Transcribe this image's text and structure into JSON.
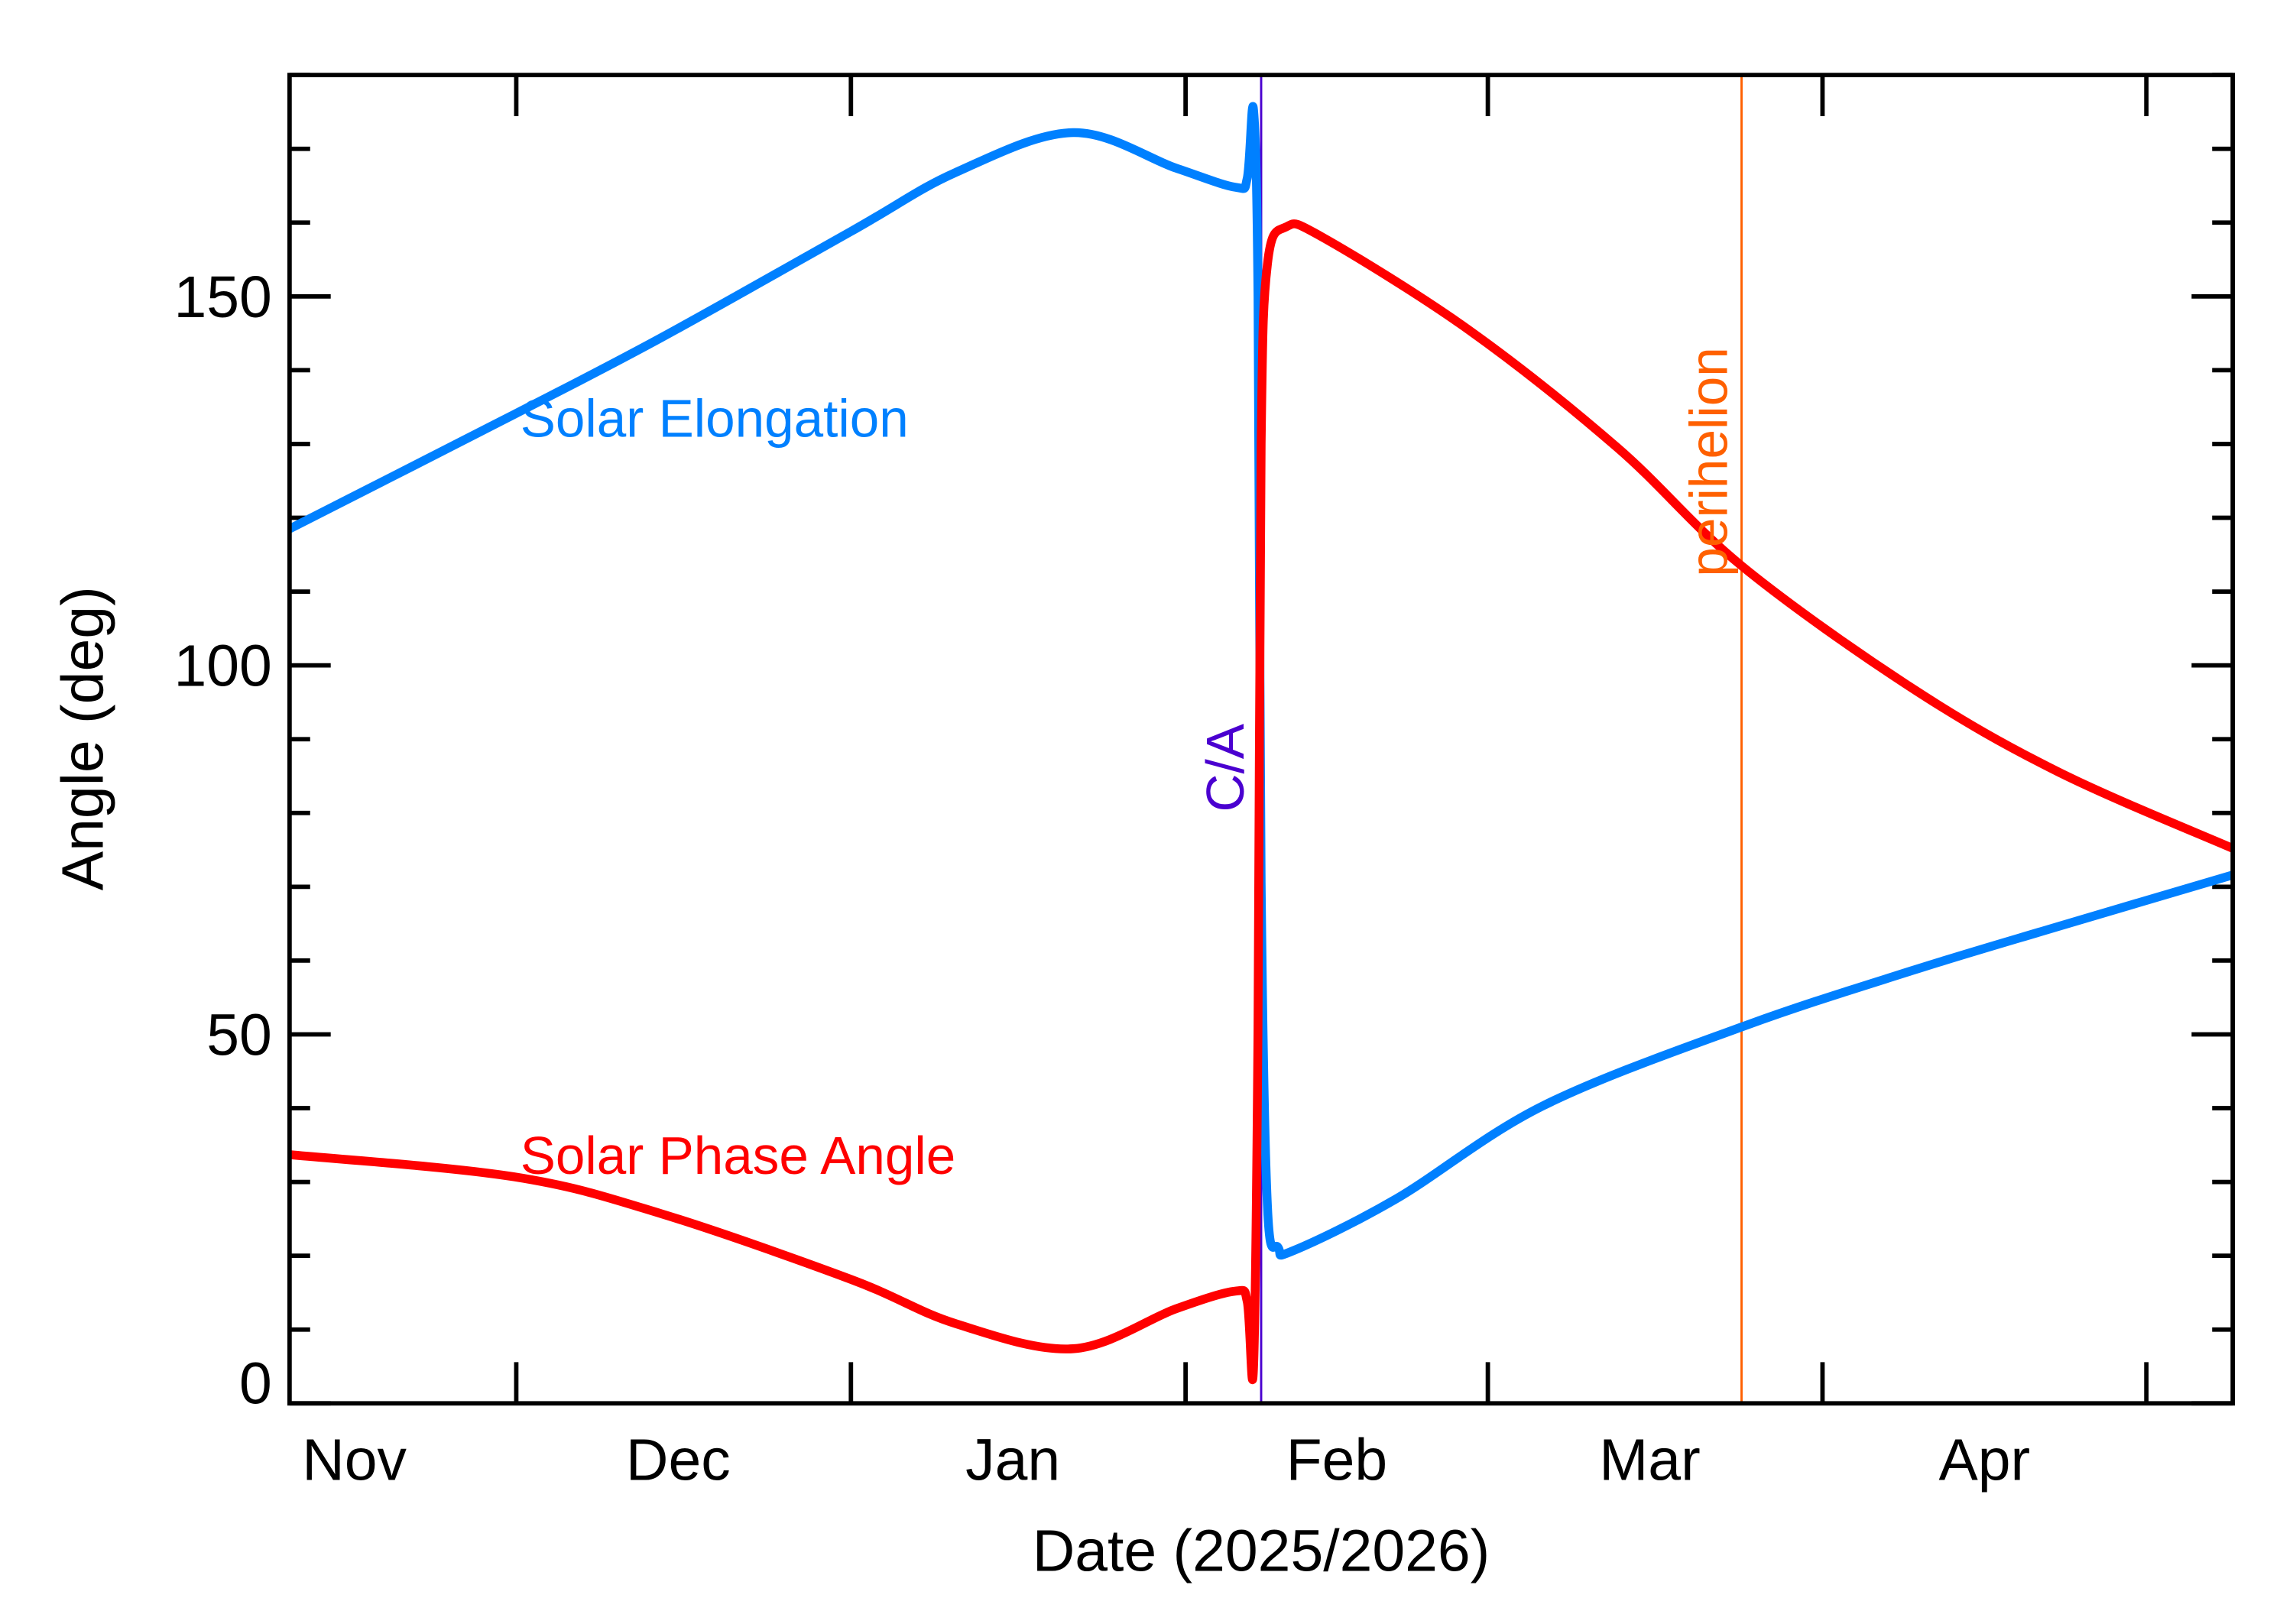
{
  "chart_data": {
    "type": "line",
    "xlabel": "Date (2025/2026)",
    "ylabel": "Angle (deg)",
    "xlim": [
      "2025-11-10",
      "2026-05-09"
    ],
    "ylim": [
      0,
      180
    ],
    "y_major_ticks": [
      0,
      50,
      100,
      150
    ],
    "y_minor_step": 10,
    "x_month_ticks": [
      "2025-12-01",
      "2026-01-01",
      "2026-02-01",
      "2026-03-01",
      "2026-04-01",
      "2026-05-01"
    ],
    "x_tick_labels": [
      {
        "label": "Nov",
        "date": "2025-11-16"
      },
      {
        "label": "Dec",
        "date": "2025-12-16"
      },
      {
        "label": "Jan",
        "date": "2026-01-16"
      },
      {
        "label": "Feb",
        "date": "2026-02-15"
      },
      {
        "label": "Mar",
        "date": "2026-03-16"
      },
      {
        "label": "Apr",
        "date": "2026-04-16"
      }
    ],
    "grid": false,
    "series": [
      {
        "name": "Solar Elongation",
        "color": "#0080ff",
        "points": [
          [
            "2025-11-10T00",
            118.5
          ],
          [
            "2025-11-30T19",
            134.0
          ],
          [
            "2025-12-14T10",
            144.4
          ],
          [
            "2026-01-01T00",
            158.8
          ],
          [
            "2026-01-10T17",
            166.8
          ],
          [
            "2026-01-21T14",
            172.2
          ],
          [
            "2026-01-31T02",
            167.4
          ],
          [
            "2026-02-05T14",
            164.8
          ],
          [
            "2026-02-06T17",
            166.0
          ],
          [
            "2026-02-07T07",
            175.3
          ],
          [
            "2026-02-07T17",
            150.0
          ],
          [
            "2026-02-08T00",
            70.6
          ],
          [
            "2026-02-08T14",
            26.7
          ],
          [
            "2026-02-09T14",
            21.1
          ],
          [
            "2026-02-11T00",
            20.7
          ],
          [
            "2026-02-20T12",
            27.7
          ],
          [
            "2026-03-06T02",
            40.3
          ],
          [
            "2026-03-24T12",
            51.0
          ],
          [
            "2026-04-09T05",
            58.6
          ],
          [
            "2026-04-22T19",
            64.6
          ],
          [
            "2026-05-09T00",
            71.6
          ]
        ]
      },
      {
        "name": "Solar Phase Angle",
        "color": "#ff0000",
        "points": [
          [
            "2025-11-10T00",
            33.7
          ],
          [
            "2025-11-30T19",
            30.7
          ],
          [
            "2025-12-14T10",
            25.7
          ],
          [
            "2026-01-01T00",
            16.8
          ],
          [
            "2026-01-10T17",
            10.8
          ],
          [
            "2026-01-21T14",
            7.4
          ],
          [
            "2026-01-31T02",
            12.8
          ],
          [
            "2026-02-05T14",
            15.2
          ],
          [
            "2026-02-06T17",
            13.8
          ],
          [
            "2026-02-07T07",
            4.8
          ],
          [
            "2026-02-07T17",
            50.7
          ],
          [
            "2026-02-08T00",
            130.0
          ],
          [
            "2026-02-08T14",
            154.4
          ],
          [
            "2026-02-10T07",
            159.4
          ],
          [
            "2026-02-13T17",
            158.0
          ],
          [
            "2026-02-27T07",
            145.4
          ],
          [
            "2026-03-13T00",
            129.5
          ],
          [
            "2026-03-24T12",
            113.5
          ],
          [
            "2026-04-09T05",
            97.0
          ],
          [
            "2026-04-22T19",
            85.6
          ],
          [
            "2026-05-09T00",
            75.2
          ]
        ]
      }
    ],
    "annotations": [
      {
        "label": "C/A",
        "date": "2026-02-08T00",
        "color": "#4a00d0"
      },
      {
        "label": "perihelion",
        "date": "2026-03-24T12",
        "color": "#ff6000"
      }
    ],
    "series_labels": [
      {
        "text": "Solar Elongation",
        "color": "#0080ff"
      },
      {
        "text": "Solar Phase Angle",
        "color": "#ff0000"
      }
    ]
  }
}
